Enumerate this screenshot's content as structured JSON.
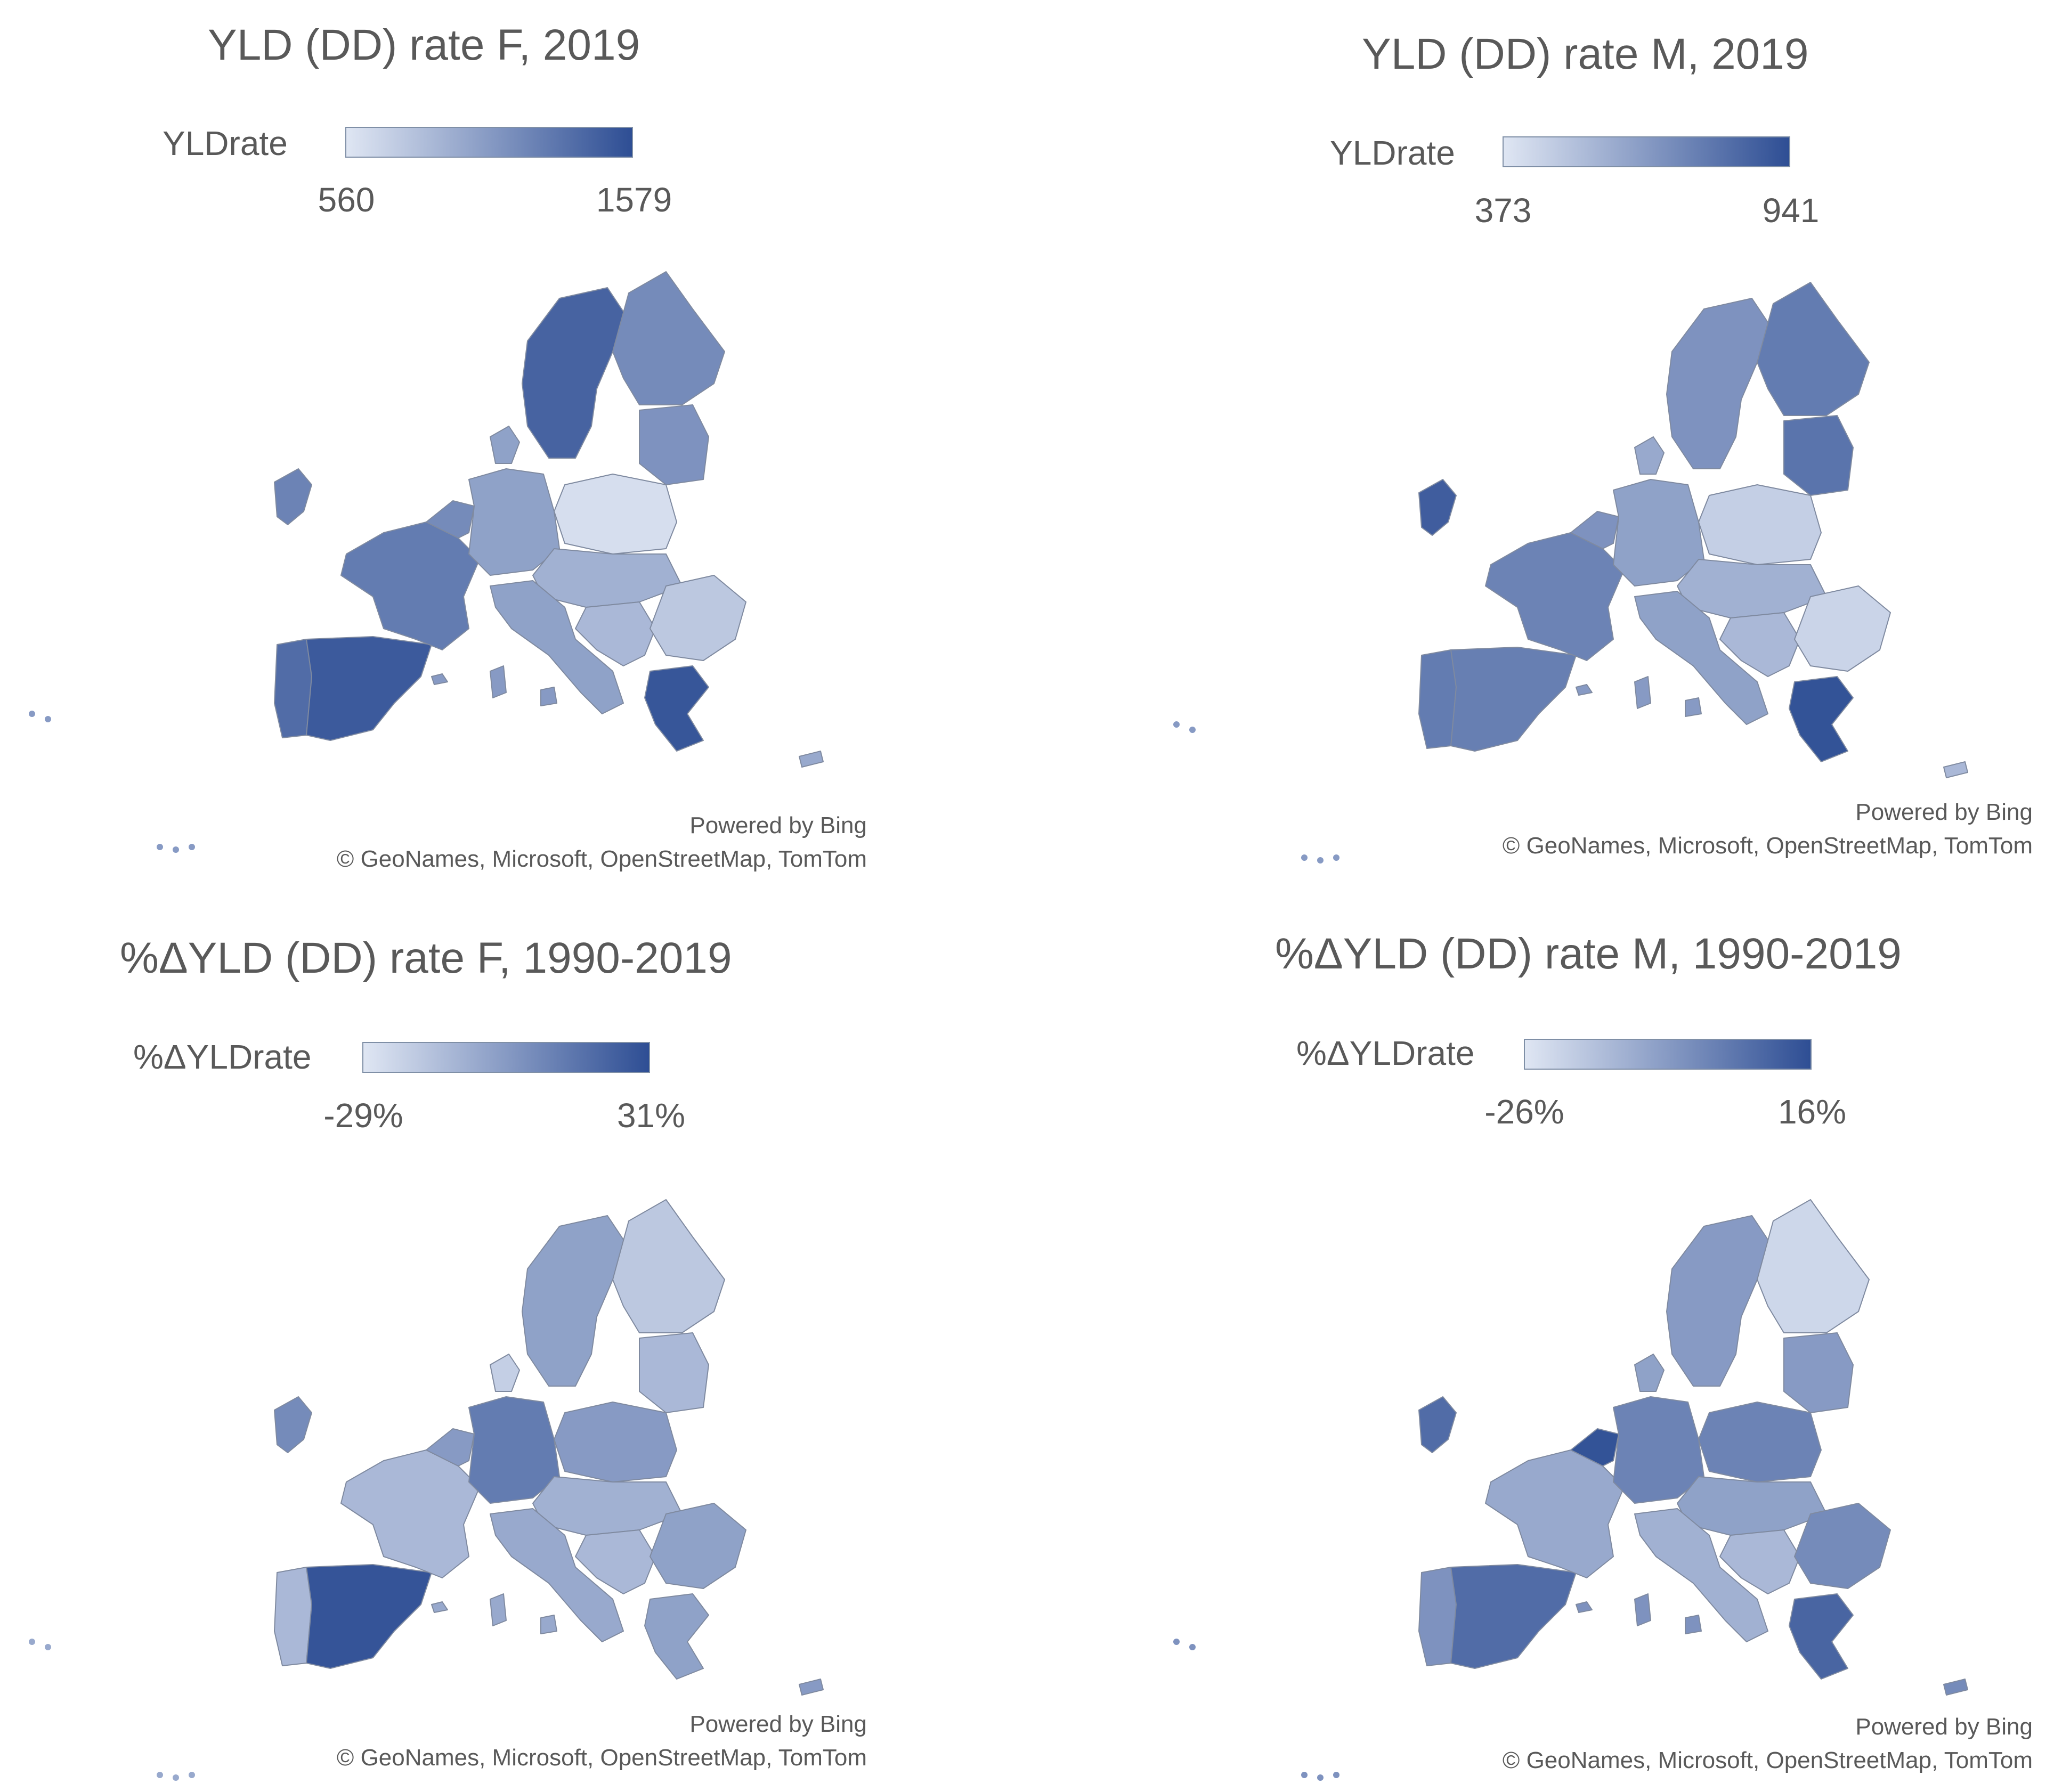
{
  "colors": {
    "scale_low": "#dfe6f3",
    "scale_high": "#2e4e94",
    "border": "#7f8aa0",
    "text": "#595959"
  },
  "credits": {
    "powered_by": "Powered by Bing",
    "attribution": "© GeoNames, Microsoft, OpenStreetMap, TomTom"
  },
  "panels": [
    {
      "title": "YLD (DD) rate F, 2019",
      "legend_label": "YLDrate",
      "legend_min": "560",
      "legend_max": "1579",
      "levels": {
        "portugal": 0.8,
        "spain": 0.92,
        "france": 0.7,
        "uk_ireland": 0.65,
        "benelux": 0.6,
        "germany": 0.45,
        "denmark": 0.45,
        "norway_sweden": 0.86,
        "finland": 0.6,
        "baltics": 0.55,
        "poland": 0.05,
        "czech_austria": 0.35,
        "italy": 0.45,
        "balkans": 0.3,
        "romania_bulgaria": 0.2,
        "greece": 0.95,
        "cyprus": 0.4,
        "islands": 0.5
      }
    },
    {
      "title": "YLD (DD) rate M, 2019",
      "legend_label": "YLDrate",
      "legend_min": "373",
      "legend_max": "941",
      "levels": {
        "portugal": 0.7,
        "spain": 0.68,
        "france": 0.65,
        "uk_ireland": 0.9,
        "benelux": 0.55,
        "germany": 0.45,
        "denmark": 0.4,
        "norway_sweden": 0.55,
        "finland": 0.7,
        "baltics": 0.75,
        "poland": 0.15,
        "czech_austria": 0.35,
        "italy": 0.45,
        "balkans": 0.3,
        "romania_bulgaria": 0.12,
        "greece": 0.97,
        "cyprus": 0.3,
        "islands": 0.5
      }
    },
    {
      "title": "%ΔYLD (DD) rate F, 1990-2019",
      "legend_label": "%ΔYLDrate",
      "legend_min": "-29%",
      "legend_max": "31%",
      "levels": {
        "portugal": 0.3,
        "spain": 0.96,
        "france": 0.3,
        "uk_ireland": 0.6,
        "benelux": 0.5,
        "germany": 0.7,
        "denmark": 0.15,
        "norway_sweden": 0.45,
        "finland": 0.2,
        "baltics": 0.3,
        "poland": 0.5,
        "czech_austria": 0.35,
        "italy": 0.4,
        "balkans": 0.3,
        "romania_bulgaria": 0.45,
        "greece": 0.45,
        "cyprus": 0.5,
        "islands": 0.4
      }
    },
    {
      "title": "%ΔYLD (DD) rate M, 1990-2019",
      "legend_label": "%ΔYLDrate",
      "legend_min": "-26%",
      "legend_max": "16%",
      "levels": {
        "portugal": 0.55,
        "spain": 0.8,
        "france": 0.4,
        "uk_ireland": 0.8,
        "benelux": 0.97,
        "germany": 0.65,
        "denmark": 0.45,
        "norway_sweden": 0.5,
        "finland": 0.1,
        "baltics": 0.5,
        "poland": 0.65,
        "czech_austria": 0.45,
        "italy": 0.35,
        "balkans": 0.3,
        "romania_bulgaria": 0.6,
        "greece": 0.85,
        "cyprus": 0.6,
        "islands": 0.55
      }
    }
  ]
}
